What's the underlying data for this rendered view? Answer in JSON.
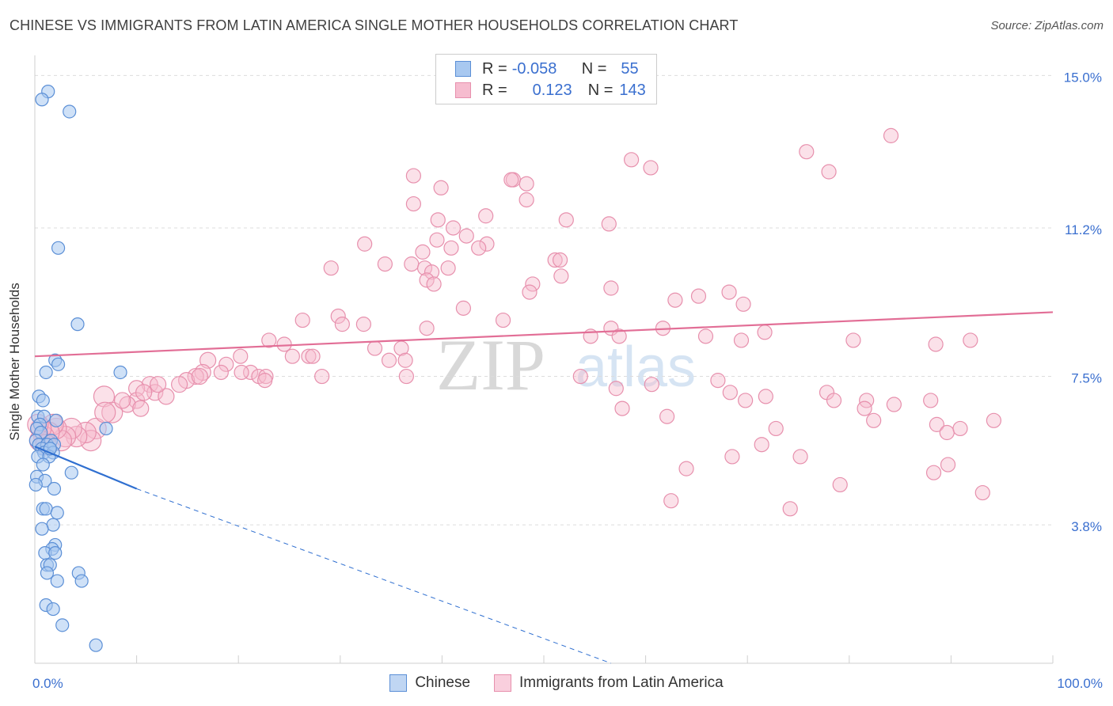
{
  "header": {
    "title": "CHINESE VS IMMIGRANTS FROM LATIN AMERICA SINGLE MOTHER HOUSEHOLDS CORRELATION CHART",
    "source": "Source: ZipAtlas.com"
  },
  "stats": {
    "rows": [
      {
        "r_label": "R =",
        "r_value": "-0.058",
        "n_label": "N =",
        "n_value": "55"
      },
      {
        "r_label": "R =",
        "r_value": "0.123",
        "n_label": "N =",
        "n_value": "143"
      }
    ]
  },
  "colors": {
    "chinese_fill": "#a8c8f0",
    "chinese_stroke": "#5b8fd6",
    "chinese_line": "#2f6fd0",
    "latin_fill": "#f6bccf",
    "latin_stroke": "#e790ad",
    "latin_line": "#e26e96",
    "tick_label": "#3a6fcf",
    "grid": "#dcdcdc"
  },
  "watermark": {
    "zip": "ZIP",
    "atlas": "atlas"
  },
  "chart_data": {
    "type": "scatter",
    "title": "CHINESE VS IMMIGRANTS FROM LATIN AMERICA SINGLE MOTHER HOUSEHOLDS CORRELATION CHART",
    "xlabel": "",
    "ylabel": "Single Mother Households",
    "xlim": [
      0,
      100
    ],
    "ylim": [
      0.35,
      15.5
    ],
    "x_tick_labels": [
      "0.0%",
      "100.0%"
    ],
    "y_ticks": [
      3.8,
      7.5,
      11.2,
      15.0
    ],
    "y_tick_labels": [
      "3.8%",
      "7.5%",
      "11.2%",
      "15.0%"
    ],
    "legend": [
      "Chinese",
      "Immigrants from Latin America"
    ],
    "series": [
      {
        "name": "Chinese",
        "r": -0.058,
        "n": 55,
        "trend": {
          "x0": 0,
          "y0": 5.75,
          "x1": 10,
          "y1": 4.7,
          "dashed_to_x": 56.6,
          "dashed_to_y": 0.35
        },
        "points": [
          [
            1.3,
            14.6
          ],
          [
            0.7,
            14.4
          ],
          [
            3.4,
            14.1
          ],
          [
            2.3,
            10.7
          ],
          [
            4.2,
            8.8
          ],
          [
            2.0,
            7.9
          ],
          [
            1.1,
            7.6
          ],
          [
            2.3,
            7.8
          ],
          [
            8.4,
            7.6
          ],
          [
            0.4,
            7.0
          ],
          [
            0.8,
            6.9
          ],
          [
            0.3,
            6.5
          ],
          [
            0.9,
            6.5
          ],
          [
            2.1,
            6.4
          ],
          [
            0.5,
            6.3
          ],
          [
            7.0,
            6.2
          ],
          [
            0.2,
            6.2
          ],
          [
            0.6,
            6.1
          ],
          [
            0.1,
            5.9
          ],
          [
            1.6,
            5.9
          ],
          [
            0.4,
            5.8
          ],
          [
            1.2,
            5.8
          ],
          [
            1.9,
            5.8
          ],
          [
            0.7,
            5.7
          ],
          [
            1.5,
            5.7
          ],
          [
            0.9,
            5.6
          ],
          [
            1.8,
            5.6
          ],
          [
            0.3,
            5.5
          ],
          [
            1.4,
            5.5
          ],
          [
            0.8,
            5.3
          ],
          [
            3.6,
            5.1
          ],
          [
            0.2,
            5.0
          ],
          [
            1.0,
            4.9
          ],
          [
            0.1,
            4.8
          ],
          [
            1.9,
            4.7
          ],
          [
            0.8,
            4.2
          ],
          [
            1.1,
            4.2
          ],
          [
            2.2,
            4.1
          ],
          [
            1.8,
            3.8
          ],
          [
            0.7,
            3.7
          ],
          [
            2.0,
            3.3
          ],
          [
            1.7,
            3.2
          ],
          [
            1.0,
            3.1
          ],
          [
            2.0,
            3.1
          ],
          [
            1.2,
            2.8
          ],
          [
            1.5,
            2.8
          ],
          [
            1.2,
            2.6
          ],
          [
            4.3,
            2.6
          ],
          [
            2.2,
            2.4
          ],
          [
            4.6,
            2.4
          ],
          [
            1.1,
            1.8
          ],
          [
            1.8,
            1.7
          ],
          [
            2.7,
            1.3
          ],
          [
            6.0,
            0.8
          ],
          [
            1.5,
            5.7
          ]
        ]
      },
      {
        "name": "Immigrants from Latin America",
        "r": 0.123,
        "n": 143,
        "trend": {
          "x0": 0,
          "y0": 8.0,
          "x1": 100,
          "y1": 9.1
        },
        "points": [
          [
            84.1,
            13.5
          ],
          [
            75.8,
            13.1
          ],
          [
            58.6,
            12.9
          ],
          [
            60.5,
            12.7
          ],
          [
            78,
            12.6
          ],
          [
            37.2,
            12.5
          ],
          [
            47,
            12.4
          ],
          [
            46.8,
            12.4
          ],
          [
            48.3,
            12.3
          ],
          [
            39.9,
            12.2
          ],
          [
            48.3,
            11.9
          ],
          [
            37.2,
            11.8
          ],
          [
            44.3,
            11.5
          ],
          [
            39.6,
            11.4
          ],
          [
            56.4,
            11.3
          ],
          [
            52.2,
            11.4
          ],
          [
            42.4,
            11.0
          ],
          [
            41.1,
            11.2
          ],
          [
            39.5,
            10.9
          ],
          [
            44.4,
            10.8
          ],
          [
            43.6,
            10.7
          ],
          [
            32.4,
            10.8
          ],
          [
            40.9,
            10.7
          ],
          [
            38.1,
            10.6
          ],
          [
            51.1,
            10.4
          ],
          [
            51.6,
            10.4
          ],
          [
            34.4,
            10.3
          ],
          [
            37.0,
            10.3
          ],
          [
            40.6,
            10.2
          ],
          [
            38.3,
            10.2
          ],
          [
            39.0,
            10.1
          ],
          [
            51.7,
            10.0
          ],
          [
            29.1,
            10.2
          ],
          [
            38.5,
            9.9
          ],
          [
            39.2,
            9.8
          ],
          [
            48.9,
            9.8
          ],
          [
            56.6,
            9.7
          ],
          [
            48.6,
            9.6
          ],
          [
            68.2,
            9.6
          ],
          [
            65.2,
            9.5
          ],
          [
            62.9,
            9.4
          ],
          [
            69.6,
            9.3
          ],
          [
            42.1,
            9.2
          ],
          [
            29.8,
            9.0
          ],
          [
            26.3,
            8.9
          ],
          [
            46.0,
            8.9
          ],
          [
            32.3,
            8.8
          ],
          [
            30.2,
            8.8
          ],
          [
            38.5,
            8.7
          ],
          [
            56.6,
            8.7
          ],
          [
            61.7,
            8.7
          ],
          [
            71.7,
            8.6
          ],
          [
            54.6,
            8.5
          ],
          [
            57.4,
            8.5
          ],
          [
            65.9,
            8.5
          ],
          [
            69.4,
            8.4
          ],
          [
            80.4,
            8.4
          ],
          [
            91.9,
            8.4
          ],
          [
            88.5,
            8.3
          ],
          [
            23.0,
            8.4
          ],
          [
            24.5,
            8.3
          ],
          [
            33.4,
            8.2
          ],
          [
            36.0,
            8.2
          ],
          [
            26.9,
            8.0
          ],
          [
            27.3,
            8.0
          ],
          [
            20.2,
            8.0
          ],
          [
            25.3,
            8.0
          ],
          [
            17.0,
            7.9
          ],
          [
            36.4,
            7.9
          ],
          [
            34.8,
            7.9
          ],
          [
            18.8,
            7.8
          ],
          [
            16.5,
            7.6
          ],
          [
            18.3,
            7.6
          ],
          [
            21.2,
            7.6
          ],
          [
            22.0,
            7.5
          ],
          [
            22.7,
            7.5
          ],
          [
            20.3,
            7.6
          ],
          [
            15.8,
            7.5
          ],
          [
            14.9,
            7.4
          ],
          [
            11.3,
            7.3
          ],
          [
            10.0,
            7.2
          ],
          [
            11.8,
            7.1
          ],
          [
            12.9,
            7.0
          ],
          [
            10.0,
            6.9
          ],
          [
            9.1,
            6.8
          ],
          [
            10.4,
            6.7
          ],
          [
            22.6,
            7.4
          ],
          [
            28.2,
            7.5
          ],
          [
            36.5,
            7.5
          ],
          [
            53.6,
            7.5
          ],
          [
            67.1,
            7.4
          ],
          [
            60.6,
            7.3
          ],
          [
            57.1,
            7.2
          ],
          [
            68.3,
            7.1
          ],
          [
            77.8,
            7.1
          ],
          [
            71.8,
            7.0
          ],
          [
            81.7,
            6.9
          ],
          [
            69.8,
            6.9
          ],
          [
            78.5,
            6.9
          ],
          [
            88.0,
            6.9
          ],
          [
            84.4,
            6.8
          ],
          [
            81.5,
            6.7
          ],
          [
            57.7,
            6.7
          ],
          [
            62.1,
            6.5
          ],
          [
            82.4,
            6.4
          ],
          [
            88.6,
            6.3
          ],
          [
            89.6,
            6.1
          ],
          [
            72.8,
            6.2
          ],
          [
            94.2,
            6.4
          ],
          [
            90.9,
            6.2
          ],
          [
            71.4,
            5.8
          ],
          [
            75.2,
            5.5
          ],
          [
            89.7,
            5.3
          ],
          [
            88.3,
            5.1
          ],
          [
            93.1,
            4.6
          ],
          [
            6.8,
            7.0
          ],
          [
            7.6,
            6.6
          ],
          [
            6.0,
            6.2
          ],
          [
            5.5,
            5.9
          ],
          [
            5.0,
            6.1
          ],
          [
            4.1,
            6.0
          ],
          [
            3.6,
            6.2
          ],
          [
            3.0,
            6.0
          ],
          [
            2.6,
            5.9
          ],
          [
            2.1,
            6.2
          ],
          [
            1.8,
            6.3
          ],
          [
            1.4,
            6.1
          ],
          [
            0.9,
            6.0
          ],
          [
            0.6,
            6.2
          ],
          [
            0.3,
            6.3
          ],
          [
            0.5,
            5.9
          ],
          [
            1.1,
            5.8
          ],
          [
            6.9,
            6.6
          ],
          [
            8.6,
            6.9
          ],
          [
            10.7,
            7.1
          ],
          [
            12.1,
            7.3
          ],
          [
            14.2,
            7.3
          ],
          [
            16.2,
            7.5
          ],
          [
            62.5,
            4.4
          ],
          [
            64.0,
            5.2
          ],
          [
            68.5,
            5.5
          ],
          [
            74.2,
            4.2
          ],
          [
            79.1,
            4.8
          ]
        ]
      }
    ]
  }
}
